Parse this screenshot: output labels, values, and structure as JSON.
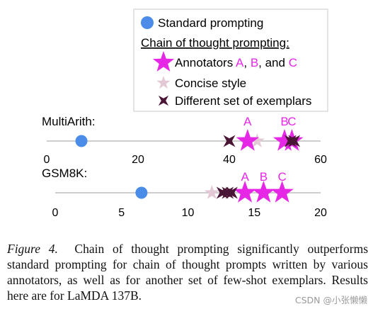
{
  "chart_data": {
    "type": "scatter",
    "legend": {
      "placement": "top-right",
      "standard_label": "Standard prompting",
      "cot_heading": "Chain of thought prompting:",
      "annotators_prefix": "Annotators ",
      "annotator_a": "A",
      "sep1": ", ",
      "annotator_b": "B",
      "sep2": ", and ",
      "annotator_c": "C",
      "concise_label": "Concise style",
      "different_label": "Different set of exemplars"
    },
    "colors": {
      "standard": "#4a8ce8",
      "annotators": "#e628e6",
      "concise": "#e3c9d6",
      "different": "#4a1636",
      "axis": "#bdbdbd"
    },
    "panels": [
      {
        "label": "MultiArith:",
        "xlim": [
          0,
          60
        ],
        "ticks": [
          "0",
          "20",
          "40",
          "60"
        ],
        "tick_values": [
          0,
          20,
          40,
          60
        ],
        "standard": 7.6,
        "annotators": [
          {
            "label": "A",
            "value": 44.0
          },
          {
            "label": "B",
            "value": 52.1
          },
          {
            "label": "C",
            "value": 53.7
          }
        ],
        "concise": 46.1,
        "different": [
          40.0,
          53.4,
          54.2
        ]
      },
      {
        "label": "GSM8K:",
        "xlim": [
          0,
          20
        ],
        "ticks": [
          "0",
          "5",
          "10",
          "15",
          "20"
        ],
        "tick_values": [
          0,
          5,
          10,
          15,
          20
        ],
        "standard": 6.5,
        "annotators": [
          {
            "label": "A",
            "value": 14.3
          },
          {
            "label": "B",
            "value": 15.7
          },
          {
            "label": "C",
            "value": 17.1
          }
        ],
        "concise": 11.8,
        "different": [
          12.6,
          13.0,
          13.3
        ]
      }
    ]
  },
  "caption": {
    "prefix": "Figure 4.",
    "text": "Chain of thought prompting significantly outperforms standard prompting for chain of thought prompts written by various annotators, as well as for another set of few-shot exemplars. Results here are for LaMDA 137B."
  },
  "watermark": "CSDN @小张懒懒"
}
